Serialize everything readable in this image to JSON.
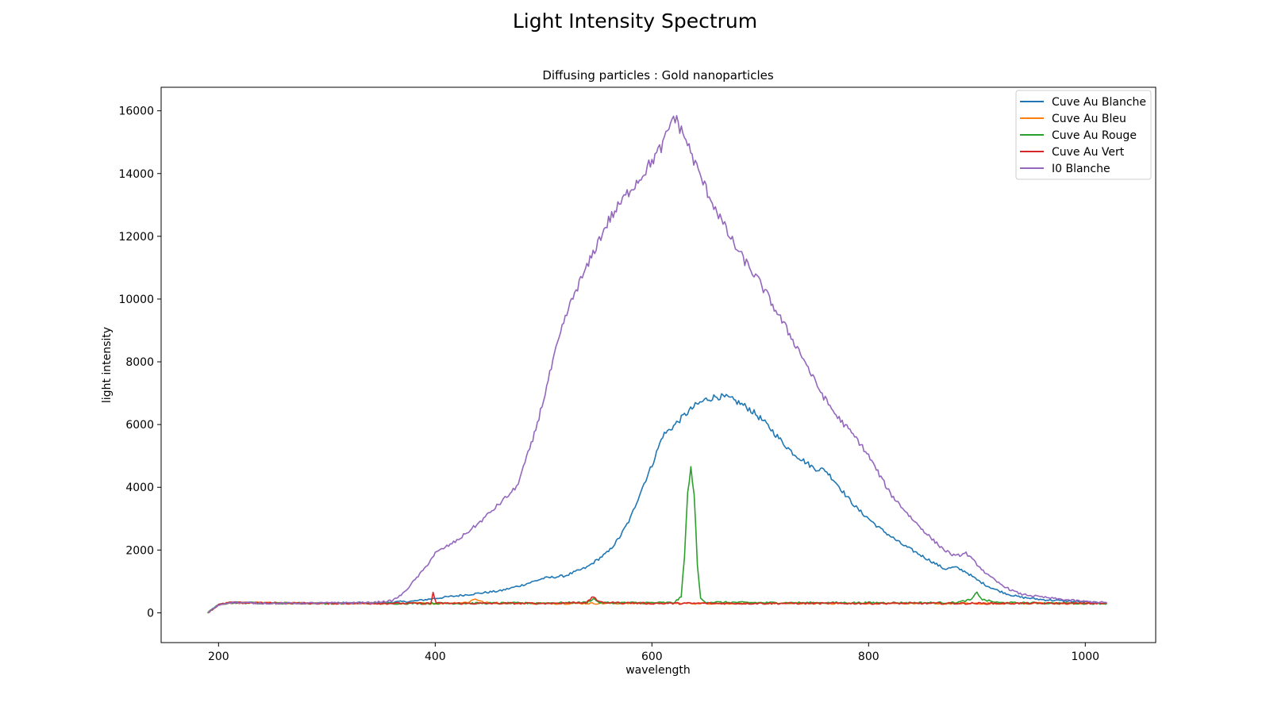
{
  "chart_data": {
    "type": "line",
    "suptitle": "Light Intensity Spectrum",
    "title": "Diffusing particles : Gold nanoparticles",
    "xlabel": "wavelength",
    "ylabel": "light intensity",
    "xlim": [
      147,
      1065
    ],
    "ylim": [
      -950,
      16750
    ],
    "xticks": [
      "200",
      "400",
      "600",
      "800",
      "1000"
    ],
    "yticks": [
      "0",
      "2000",
      "4000",
      "6000",
      "8000",
      "10000",
      "12000",
      "14000",
      "16000"
    ],
    "grid": false,
    "legend_position": "top-right",
    "series": [
      {
        "name": "Cuve Au Blanche",
        "color": "#1f77b4",
        "points": [
          [
            190,
            0
          ],
          [
            200,
            250
          ],
          [
            210,
            330
          ],
          [
            250,
            300
          ],
          [
            300,
            310
          ],
          [
            350,
            320
          ],
          [
            380,
            370
          ],
          [
            400,
            460
          ],
          [
            420,
            540
          ],
          [
            440,
            620
          ],
          [
            460,
            700
          ],
          [
            480,
            880
          ],
          [
            500,
            1100
          ],
          [
            520,
            1180
          ],
          [
            540,
            1450
          ],
          [
            560,
            1950
          ],
          [
            570,
            2400
          ],
          [
            580,
            3000
          ],
          [
            590,
            3900
          ],
          [
            600,
            4700
          ],
          [
            610,
            5650
          ],
          [
            620,
            5950
          ],
          [
            630,
            6300
          ],
          [
            640,
            6600
          ],
          [
            650,
            6800
          ],
          [
            660,
            6900
          ],
          [
            670,
            6850
          ],
          [
            680,
            6700
          ],
          [
            690,
            6500
          ],
          [
            700,
            6200
          ],
          [
            710,
            5850
          ],
          [
            720,
            5450
          ],
          [
            730,
            5100
          ],
          [
            740,
            4850
          ],
          [
            750,
            4600
          ],
          [
            760,
            4550
          ],
          [
            770,
            4150
          ],
          [
            780,
            3700
          ],
          [
            790,
            3300
          ],
          [
            800,
            3000
          ],
          [
            810,
            2700
          ],
          [
            820,
            2450
          ],
          [
            830,
            2200
          ],
          [
            840,
            2000
          ],
          [
            850,
            1800
          ],
          [
            860,
            1600
          ],
          [
            870,
            1400
          ],
          [
            880,
            1450
          ],
          [
            890,
            1300
          ],
          [
            900,
            1050
          ],
          [
            910,
            850
          ],
          [
            920,
            700
          ],
          [
            930,
            580
          ],
          [
            940,
            500
          ],
          [
            960,
            420
          ],
          [
            980,
            380
          ],
          [
            1000,
            340
          ],
          [
            1020,
            300
          ]
        ]
      },
      {
        "name": "Cuve Au Bleu",
        "color": "#ff7f0e",
        "points": [
          [
            190,
            0
          ],
          [
            200,
            250
          ],
          [
            210,
            320
          ],
          [
            300,
            300
          ],
          [
            400,
            300
          ],
          [
            430,
            330
          ],
          [
            437,
            450
          ],
          [
            445,
            320
          ],
          [
            500,
            300
          ],
          [
            600,
            300
          ],
          [
            700,
            300
          ],
          [
            800,
            300
          ],
          [
            900,
            300
          ],
          [
            1000,
            300
          ],
          [
            1020,
            300
          ]
        ]
      },
      {
        "name": "Cuve Au Rouge",
        "color": "#2ca02c",
        "points": [
          [
            190,
            0
          ],
          [
            200,
            250
          ],
          [
            210,
            320
          ],
          [
            300,
            300
          ],
          [
            400,
            300
          ],
          [
            500,
            310
          ],
          [
            540,
            330
          ],
          [
            546,
            450
          ],
          [
            552,
            320
          ],
          [
            620,
            320
          ],
          [
            627,
            500
          ],
          [
            630,
            1800
          ],
          [
            633,
            3800
          ],
          [
            636,
            4600
          ],
          [
            639,
            3800
          ],
          [
            642,
            1500
          ],
          [
            645,
            450
          ],
          [
            650,
            340
          ],
          [
            700,
            320
          ],
          [
            800,
            320
          ],
          [
            880,
            320
          ],
          [
            895,
            420
          ],
          [
            900,
            650
          ],
          [
            905,
            420
          ],
          [
            920,
            320
          ],
          [
            1000,
            300
          ],
          [
            1020,
            300
          ]
        ]
      },
      {
        "name": "Cuve Au Vert",
        "color": "#d62728",
        "points": [
          [
            190,
            0
          ],
          [
            200,
            250
          ],
          [
            210,
            320
          ],
          [
            300,
            300
          ],
          [
            396,
            300
          ],
          [
            398,
            650
          ],
          [
            401,
            300
          ],
          [
            500,
            300
          ],
          [
            540,
            330
          ],
          [
            546,
            520
          ],
          [
            552,
            330
          ],
          [
            600,
            300
          ],
          [
            700,
            300
          ],
          [
            800,
            300
          ],
          [
            900,
            300
          ],
          [
            1000,
            300
          ],
          [
            1020,
            300
          ]
        ]
      },
      {
        "name": "I0 Blanche",
        "color": "#9467bd",
        "points": [
          [
            190,
            0
          ],
          [
            200,
            250
          ],
          [
            210,
            330
          ],
          [
            250,
            300
          ],
          [
            300,
            310
          ],
          [
            340,
            320
          ],
          [
            360,
            380
          ],
          [
            370,
            600
          ],
          [
            380,
            1000
          ],
          [
            390,
            1400
          ],
          [
            400,
            1900
          ],
          [
            420,
            2300
          ],
          [
            440,
            2850
          ],
          [
            460,
            3500
          ],
          [
            475,
            4000
          ],
          [
            480,
            4500
          ],
          [
            490,
            5500
          ],
          [
            500,
            6800
          ],
          [
            510,
            8200
          ],
          [
            520,
            9400
          ],
          [
            530,
            10300
          ],
          [
            540,
            11000
          ],
          [
            550,
            11800
          ],
          [
            560,
            12500
          ],
          [
            570,
            13000
          ],
          [
            580,
            13500
          ],
          [
            590,
            13900
          ],
          [
            600,
            14400
          ],
          [
            610,
            14900
          ],
          [
            620,
            15850
          ],
          [
            630,
            15200
          ],
          [
            640,
            14300
          ],
          [
            650,
            13500
          ],
          [
            660,
            12800
          ],
          [
            670,
            12100
          ],
          [
            680,
            11500
          ],
          [
            690,
            11000
          ],
          [
            700,
            10500
          ],
          [
            710,
            9900
          ],
          [
            720,
            9300
          ],
          [
            730,
            8700
          ],
          [
            740,
            8100
          ],
          [
            750,
            7400
          ],
          [
            760,
            6800
          ],
          [
            770,
            6300
          ],
          [
            780,
            5900
          ],
          [
            790,
            5500
          ],
          [
            800,
            5000
          ],
          [
            810,
            4400
          ],
          [
            820,
            3800
          ],
          [
            830,
            3400
          ],
          [
            840,
            3000
          ],
          [
            850,
            2650
          ],
          [
            860,
            2300
          ],
          [
            870,
            2000
          ],
          [
            880,
            1800
          ],
          [
            890,
            1900
          ],
          [
            900,
            1550
          ],
          [
            910,
            1200
          ],
          [
            920,
            950
          ],
          [
            930,
            750
          ],
          [
            940,
            600
          ],
          [
            960,
            500
          ],
          [
            980,
            420
          ],
          [
            1000,
            360
          ],
          [
            1020,
            320
          ]
        ]
      }
    ]
  }
}
